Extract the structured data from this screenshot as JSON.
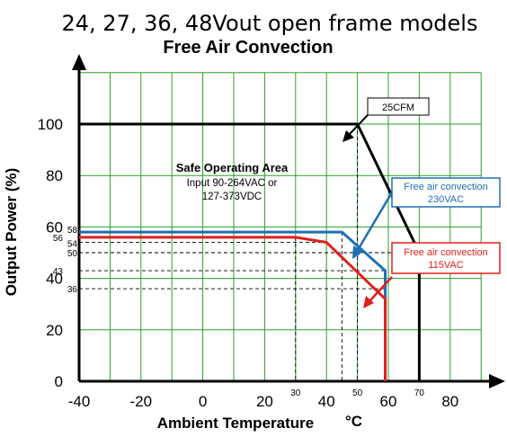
{
  "chart_data": {
    "type": "line",
    "title": "24, 27, 36, 48Vout open frame models",
    "subtitle": "Free Air Convection",
    "xlabel": "Ambient Temperature",
    "xunit": "°C",
    "ylabel": "Output Power (%)",
    "xlim": [
      -40,
      90
    ],
    "ylim": [
      0,
      120
    ],
    "grid": true,
    "x_ticks": [
      {
        "value": -40,
        "label": "-40"
      },
      {
        "value": -20,
        "label": "-20"
      },
      {
        "value": 0,
        "label": "0"
      },
      {
        "value": 20,
        "label": "20"
      },
      {
        "value": 40,
        "label": "40"
      },
      {
        "value": 60,
        "label": "60"
      },
      {
        "value": 80,
        "label": "80"
      }
    ],
    "y_ticks": [
      {
        "value": 0,
        "label": "0"
      },
      {
        "value": 20,
        "label": "20"
      },
      {
        "value": 40,
        "label": "40"
      },
      {
        "value": 60,
        "label": "60"
      },
      {
        "value": 80,
        "label": "80"
      },
      {
        "value": 100,
        "label": "100"
      }
    ],
    "x_markers": [
      {
        "value": 30,
        "label": "30"
      },
      {
        "value": 50,
        "label": "50"
      },
      {
        "value": 70,
        "label": "70"
      }
    ],
    "y_markers": [
      {
        "value": 58,
        "label": "58"
      },
      {
        "value": 56,
        "label": "56"
      },
      {
        "value": 54,
        "label": "54"
      },
      {
        "value": 50,
        "label": "50"
      },
      {
        "value": 43,
        "label": "43"
      },
      {
        "value": 36,
        "label": "36"
      }
    ],
    "series": [
      {
        "name": "25CFM",
        "color": "#000000",
        "points": [
          [
            -40,
            100
          ],
          [
            50,
            100
          ],
          [
            70,
            50
          ],
          [
            70,
            0
          ]
        ]
      },
      {
        "name": "Free air convection 230VAC",
        "color": "#1f6fb5",
        "points": [
          [
            -40,
            58
          ],
          [
            45,
            58
          ],
          [
            59,
            43
          ],
          [
            59,
            0
          ]
        ]
      },
      {
        "name": "Free air convection 115VAC",
        "color": "#e0201b",
        "points": [
          [
            -40,
            56
          ],
          [
            30,
            56
          ],
          [
            40,
            54
          ],
          [
            59,
            32
          ],
          [
            59,
            0
          ]
        ]
      }
    ],
    "annotations": {
      "soa_title": "Safe Operating Area",
      "soa_line1": "Input 90-264VAC or",
      "soa_line2": "127-373VDC",
      "label_25cfm": "25CFM",
      "label_230_line1": "Free air convection",
      "label_230_line2": "230VAC",
      "label_115_line1": "Free air convection",
      "label_115_line2": "115VAC"
    }
  }
}
